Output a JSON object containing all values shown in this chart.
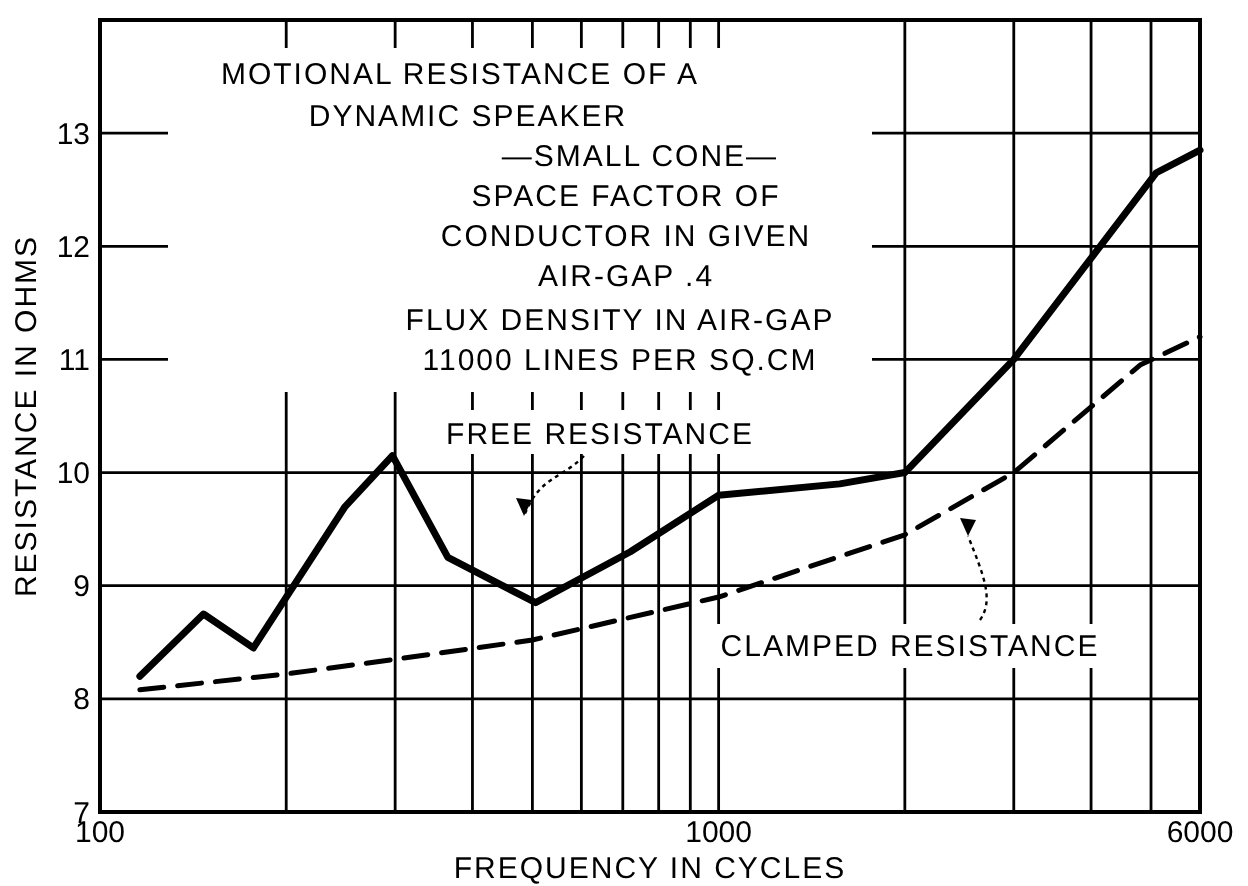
{
  "chart_data": {
    "type": "line",
    "title": "MOTIONAL RESISTANCE OF A\nDYNAMIC SPEAKER",
    "xlabel": "FREQUENCY IN CYCLES",
    "ylabel": "RESISTANCE IN OHMS",
    "annotations": [
      "—SMALL CONE—",
      "SPACE FACTOR OF\nCONDUCTOR IN GIVEN\nAIR-GAP .4",
      "FLUX DENSITY IN AIR-GAP\n11000 LINES PER SQ.CM"
    ],
    "log": "x",
    "xlim": [
      100,
      6000
    ],
    "ylim": [
      7,
      14
    ],
    "xticks": [
      100,
      {
        "value": 200,
        "label": null
      },
      {
        "value": 300,
        "label": null
      },
      {
        "value": 400,
        "label": null
      },
      {
        "value": 500,
        "label": null
      },
      {
        "value": 600,
        "label": null
      },
      {
        "value": 700,
        "label": null
      },
      {
        "value": 800,
        "label": null
      },
      {
        "value": 900,
        "label": null
      },
      1000,
      {
        "value": 2000,
        "label": null
      },
      {
        "value": 3000,
        "label": null
      },
      {
        "value": 4000,
        "label": null
      },
      {
        "value": 5000,
        "label": null
      },
      6000
    ],
    "yticks": [
      7,
      8,
      9,
      10,
      11,
      12,
      13
    ],
    "grid": true,
    "legend": false,
    "series": [
      {
        "name": "FREE RESISTANCE",
        "color": "#000000",
        "line_style": "solid",
        "x": [
          116,
          147,
          177,
          249,
          297,
          365,
          506,
          720,
          1000,
          1570,
          2000,
          3000,
          5100,
          6000
        ],
        "values": [
          8.2,
          8.75,
          8.45,
          9.7,
          10.15,
          9.25,
          8.85,
          9.3,
          9.8,
          9.9,
          10.0,
          11.0,
          12.65,
          12.85
        ]
      },
      {
        "name": "CLAMPED RESISTANCE",
        "color": "#000000",
        "line_style": "dashed",
        "x": [
          116,
          200,
          300,
          500,
          720,
          1000,
          2000,
          3000,
          4800,
          6000
        ],
        "values": [
          8.08,
          8.22,
          8.35,
          8.52,
          8.72,
          8.9,
          9.45,
          10.0,
          10.95,
          11.2
        ]
      }
    ]
  }
}
